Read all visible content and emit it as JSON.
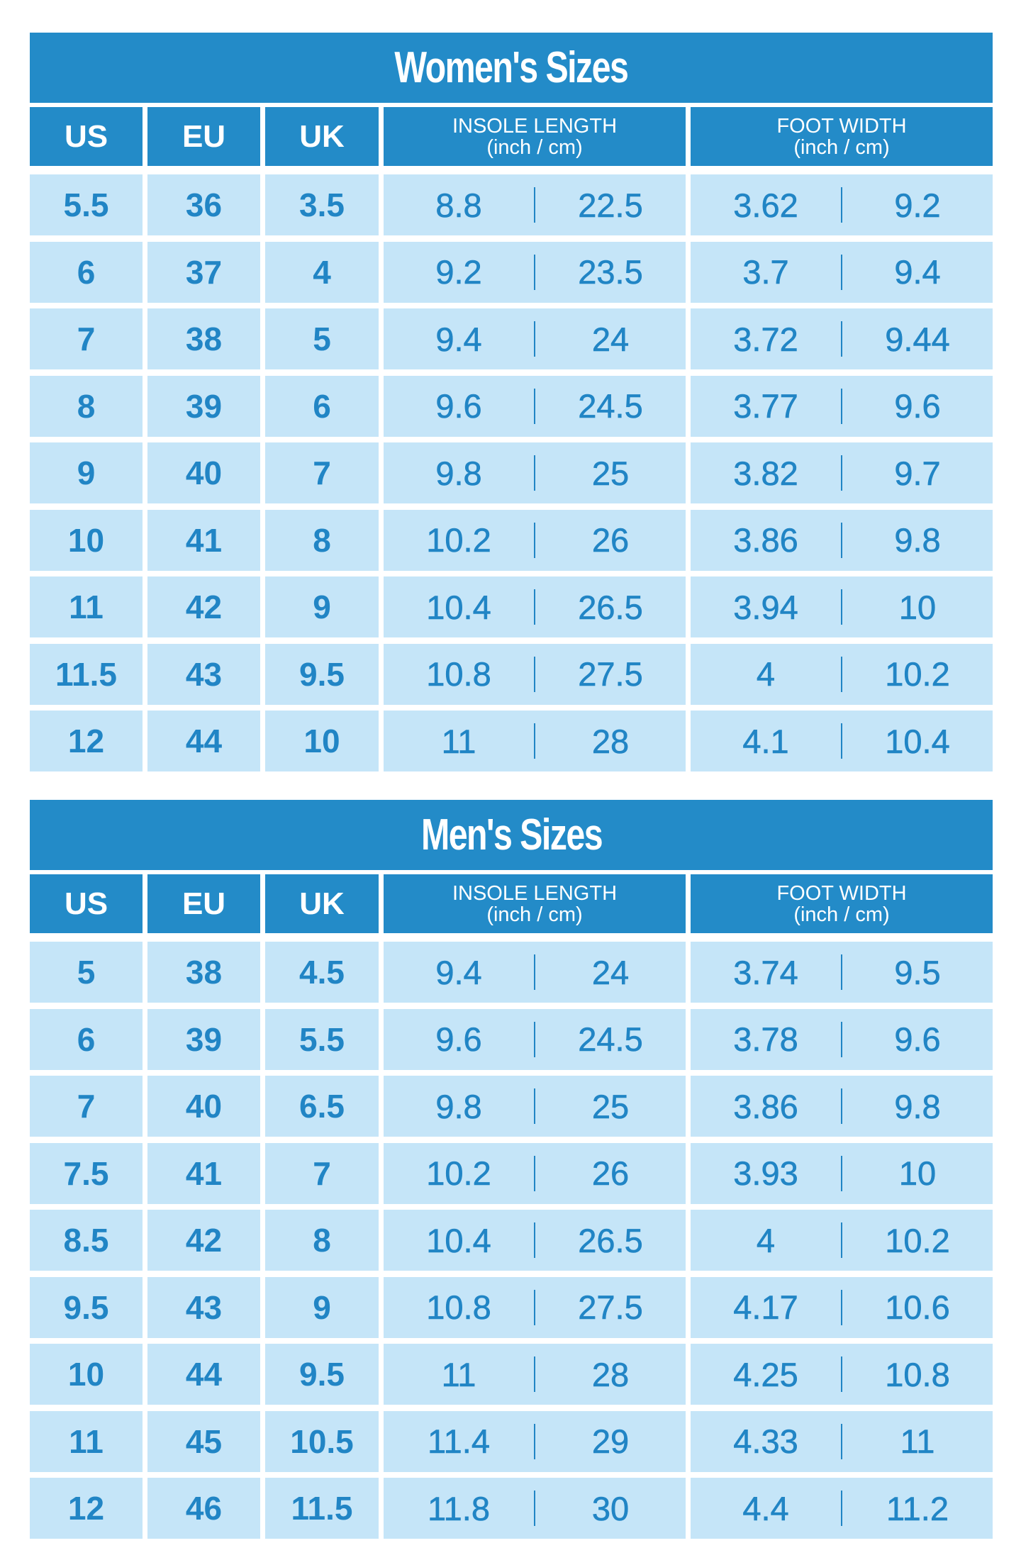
{
  "colors": {
    "header": "#238bc8",
    "row": "#c5e5f8",
    "text": "#2185c5"
  },
  "headers": {
    "us": "US",
    "eu": "EU",
    "uk": "UK",
    "insole_1": "INSOLE LENGTH",
    "insole_2": "(inch / cm)",
    "foot_1": "FOOT WIDTH",
    "foot_2": "(inch / cm)"
  },
  "women": {
    "title": "Women's Sizes",
    "rows": [
      [
        "5.5",
        "36",
        "3.5",
        "8.8",
        "22.5",
        "3.62",
        "9.2"
      ],
      [
        "6",
        "37",
        "4",
        "9.2",
        "23.5",
        "3.7",
        "9.4"
      ],
      [
        "7",
        "38",
        "5",
        "9.4",
        "24",
        "3.72",
        "9.44"
      ],
      [
        "8",
        "39",
        "6",
        "9.6",
        "24.5",
        "3.77",
        "9.6"
      ],
      [
        "9",
        "40",
        "7",
        "9.8",
        "25",
        "3.82",
        "9.7"
      ],
      [
        "10",
        "41",
        "8",
        "10.2",
        "26",
        "3.86",
        "9.8"
      ],
      [
        "11",
        "42",
        "9",
        "10.4",
        "26.5",
        "3.94",
        "10"
      ],
      [
        "11.5",
        "43",
        "9.5",
        "10.8",
        "27.5",
        "4",
        "10.2"
      ],
      [
        "12",
        "44",
        "10",
        "11",
        "28",
        "4.1",
        "10.4"
      ]
    ]
  },
  "men": {
    "title": "Men's Sizes",
    "rows": [
      [
        "5",
        "38",
        "4.5",
        "9.4",
        "24",
        "3.74",
        "9.5"
      ],
      [
        "6",
        "39",
        "5.5",
        "9.6",
        "24.5",
        "3.78",
        "9.6"
      ],
      [
        "7",
        "40",
        "6.5",
        "9.8",
        "25",
        "3.86",
        "9.8"
      ],
      [
        "7.5",
        "41",
        "7",
        "10.2",
        "26",
        "3.93",
        "10"
      ],
      [
        "8.5",
        "42",
        "8",
        "10.4",
        "26.5",
        "4",
        "10.2"
      ],
      [
        "9.5",
        "43",
        "9",
        "10.8",
        "27.5",
        "4.17",
        "10.6"
      ],
      [
        "10",
        "44",
        "9.5",
        "11",
        "28",
        "4.25",
        "10.8"
      ],
      [
        "11",
        "45",
        "10.5",
        "11.4",
        "29",
        "4.33",
        "11"
      ],
      [
        "12",
        "46",
        "11.5",
        "11.8",
        "30",
        "4.4",
        "11.2"
      ]
    ]
  }
}
